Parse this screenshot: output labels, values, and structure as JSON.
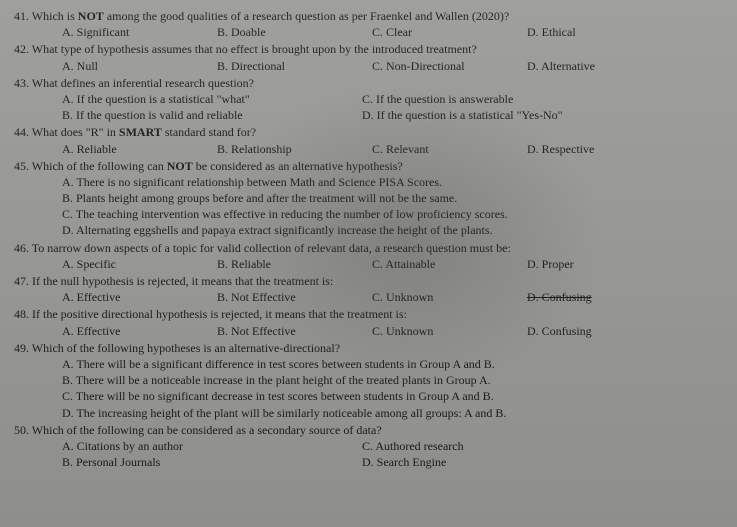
{
  "questions": [
    {
      "n": "41.",
      "text": "Which is <b>NOT</b> among the good qualities of a research question as per Fraenkel and Wallen (2020)?",
      "layout": "row4",
      "opts": [
        "A. Significant",
        "B. Doable",
        "C. Clear",
        "D. Ethical"
      ]
    },
    {
      "n": "42.",
      "text": "What type of hypothesis assumes that no effect is brought upon by the introduced treatment?",
      "layout": "row4",
      "opts": [
        "A. Null",
        "B. Directional",
        "C. Non-Directional",
        "D. Alternative"
      ]
    },
    {
      "n": "43.",
      "text": "What defines an inferential research question?",
      "layout": "2x2",
      "opts": [
        "A. If the question is a statistical \"what\"",
        "B. If the question is valid and reliable",
        "C. If the question is answerable",
        "D. If the question is a statistical \"Yes-No\""
      ]
    },
    {
      "n": "44.",
      "text": "What does \"R\" in <b>SMART</b> standard stand for?",
      "layout": "row4",
      "opts": [
        "A. Reliable",
        "B. Relationship",
        "C. Relevant",
        "D. Respective"
      ]
    },
    {
      "n": "45.",
      "text": "Which of the following can <b>NOT</b> be considered as an alternative hypothesis?",
      "layout": "list",
      "opts": [
        "A.  There is no significant relationship between Math and Science PISA Scores.",
        "B.  Plants height among groups before and after the treatment will not be the same.",
        "C.  The teaching intervention was effective in reducing the number of low proficiency scores.",
        "D.  Alternating eggshells and papaya extract significantly increase the height of the plants."
      ]
    },
    {
      "n": "46.",
      "text": "To narrow down aspects of a topic for valid collection of relevant data, a research question must be:",
      "layout": "row4",
      "opts": [
        "A. Specific",
        "B. Reliable",
        "C. Attainable",
        "D. Proper"
      ]
    },
    {
      "n": "47.",
      "text": "If the null hypothesis is rejected, it means that the treatment is:",
      "layout": "row4",
      "opts": [
        "A. Effective",
        "B. Not Effective",
        "C. Unknown",
        "<s>D. Confusing</s>"
      ]
    },
    {
      "n": "48.",
      "text": "If the positive directional hypothesis is rejected, it means that the treatment is:",
      "layout": "row4",
      "opts": [
        "A. Effective",
        "B. Not Effective",
        "C. Unknown",
        "D. Confusing"
      ]
    },
    {
      "n": "49.",
      "text": "Which of the following hypotheses is an alternative-directional?",
      "layout": "list",
      "opts": [
        "A.  There will be a significant difference in test scores between students in Group A and B.",
        "B.  There will be a noticeable increase in the plant height of the treated plants in Group A.",
        "C.  There will be no significant decrease in test scores between students in Group A and B.",
        "D.  The increasing height of the plant will be similarly noticeable among all groups: A and B."
      ]
    },
    {
      "n": "50.",
      "text": "Which of the following can be considered as a secondary source of data?",
      "layout": "2x2b",
      "opts": [
        "A.  Citations by an author",
        "B.  Personal Journals",
        "C. Authored research",
        "D. Search Engine"
      ]
    }
  ]
}
